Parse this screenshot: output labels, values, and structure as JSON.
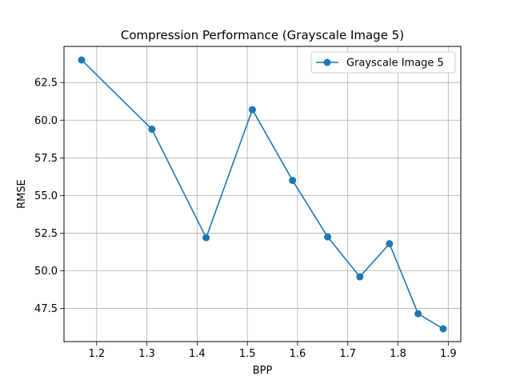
{
  "chart_data": {
    "type": "line",
    "title": "Compression Performance (Grayscale Image 5)",
    "xlabel": "BPP",
    "ylabel": "RMSE",
    "xlim": [
      1.135,
      1.925
    ],
    "ylim": [
      45.3,
      64.9
    ],
    "xticks": [
      1.2,
      1.3,
      1.4,
      1.5,
      1.6,
      1.7,
      1.8,
      1.9
    ],
    "xtick_labels": [
      "1.2",
      "1.3",
      "1.4",
      "1.5",
      "1.6",
      "1.7",
      "1.8",
      "1.9"
    ],
    "yticks": [
      47.5,
      50.0,
      52.5,
      55.0,
      57.5,
      60.0,
      62.5
    ],
    "ytick_labels": [
      "47.5",
      "50.0",
      "52.5",
      "55.0",
      "57.5",
      "60.0",
      "62.5"
    ],
    "grid": true,
    "legend_position": "top-right",
    "series": [
      {
        "name": "Grayscale Image 5",
        "color": "#1f77b4",
        "marker": "circle",
        "x": [
          1.17,
          1.31,
          1.418,
          1.51,
          1.59,
          1.66,
          1.724,
          1.783,
          1.84,
          1.89
        ],
        "y": [
          64.0,
          59.4,
          52.2,
          60.7,
          56.0,
          52.25,
          49.6,
          51.8,
          47.15,
          46.15
        ]
      }
    ]
  }
}
